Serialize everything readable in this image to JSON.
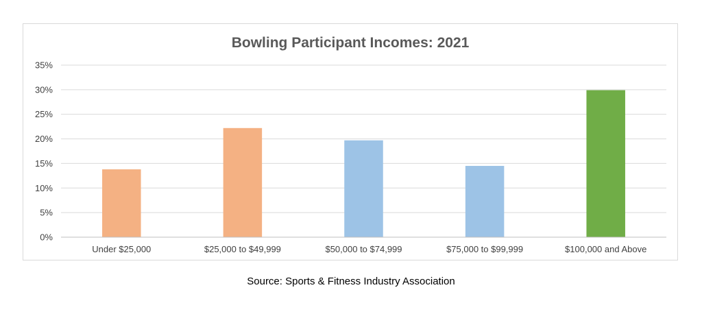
{
  "chart_data": {
    "type": "bar",
    "title": "Bowling Participant Incomes: 2021",
    "xlabel": "",
    "ylabel": "",
    "categories": [
      "Under $25,000",
      "$25,000 to $49,999",
      "$50,000 to $74,999",
      "$75,000 to $99,999",
      "$100,000 and Above"
    ],
    "values": [
      13.8,
      22.2,
      19.7,
      14.5,
      29.9
    ],
    "bar_colors": [
      "#f4b183",
      "#f4b183",
      "#9dc3e6",
      "#9dc3e6",
      "#70ad47"
    ],
    "ylim": [
      0,
      35
    ],
    "yticks": [
      0,
      5,
      10,
      15,
      20,
      25,
      30,
      35
    ],
    "ytick_suffix": "%",
    "grid": true,
    "legend": "none",
    "colors": {
      "grid": "#d9d9d9",
      "axis": "#bfbfbf",
      "text": "#404040",
      "title": "#595959"
    }
  },
  "source_note": "Source: Sports & Fitness Industry Association"
}
